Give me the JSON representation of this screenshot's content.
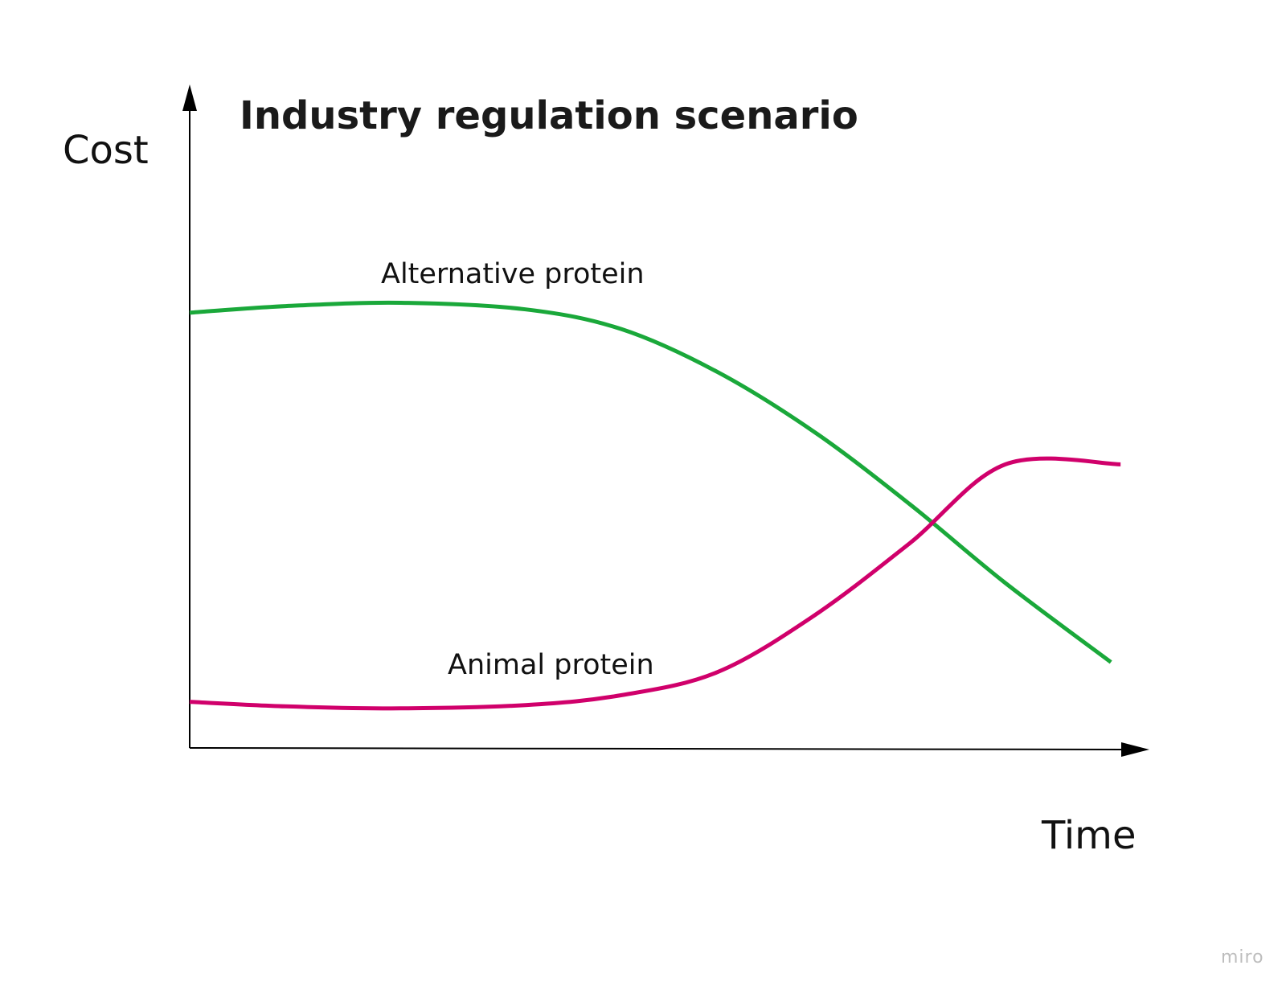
{
  "chart_data": {
    "type": "line",
    "title": "Industry regulation scenario",
    "ylabel": "Cost",
    "xlabel": "Time",
    "xlim": [
      0,
      100
    ],
    "ylim": [
      0,
      100
    ],
    "grid": false,
    "ticks": false,
    "series": [
      {
        "name": "Alternative protein",
        "color": "#1aa83a",
        "x": [
          0,
          10,
          22,
          35,
          45,
          55,
          65,
          75,
          85,
          96
        ],
        "y": [
          66,
          67,
          67.5,
          66.5,
          63.5,
          57,
          48,
          37,
          25,
          13
        ]
      },
      {
        "name": "Animal protein",
        "color": "#d0006b",
        "x": [
          0,
          10,
          22,
          35,
          45,
          55,
          65,
          75,
          85,
          97
        ],
        "y": [
          7,
          6.3,
          6,
          6.5,
          8,
          11.5,
          20,
          31,
          43,
          43
        ]
      }
    ],
    "watermark": "miro"
  }
}
